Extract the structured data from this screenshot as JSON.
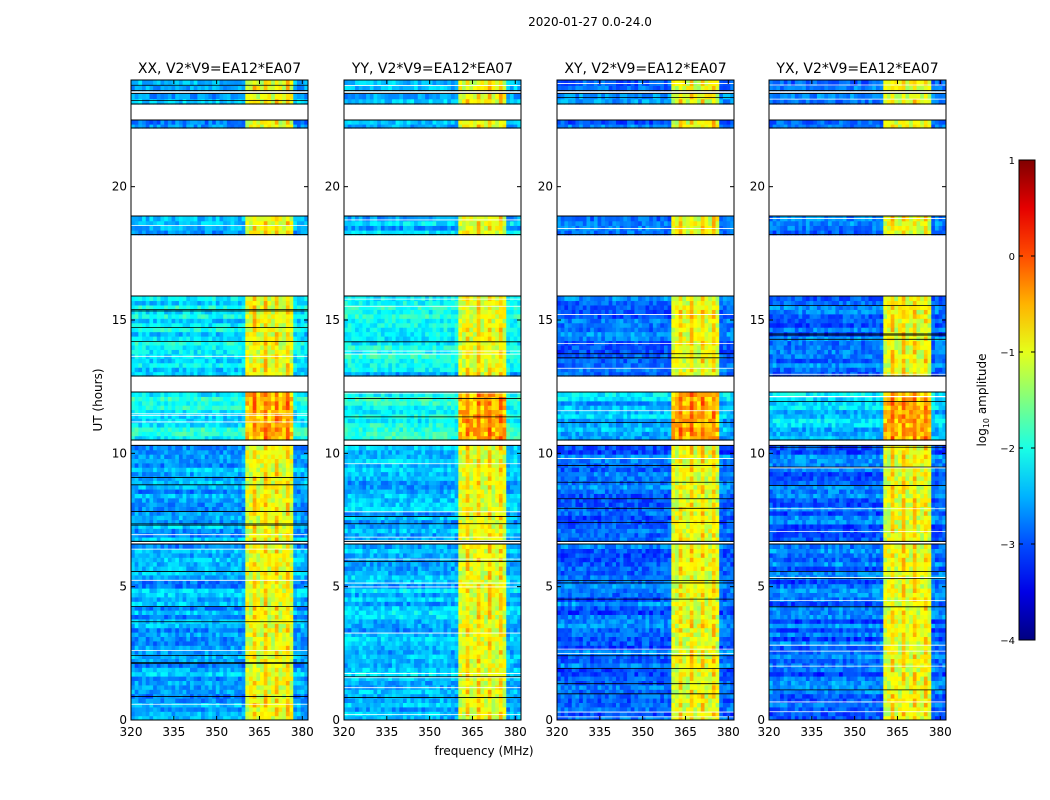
{
  "figure": {
    "suptitle": "2020-01-27 0.0-24.0"
  },
  "chart_data": {
    "type": "heatmap",
    "title": "2020-01-27 0.0-24.0",
    "xlabel": "frequency (MHz)",
    "ylabel": "UT (hours)",
    "xlim": [
      320,
      382
    ],
    "ylim": [
      0,
      24
    ],
    "x_ticks": [
      "320",
      "335",
      "350",
      "365",
      "380"
    ],
    "x_tick_values": [
      320,
      335,
      350,
      365,
      380
    ],
    "y_ticks": [
      "0",
      "5",
      "10",
      "15",
      "20"
    ],
    "y_tick_values": [
      0,
      5,
      10,
      15,
      20
    ],
    "panels": [
      {
        "title": "XX, V2*V9=EA12*EA07",
        "pol": "XX"
      },
      {
        "title": "YY, V2*V9=EA12*EA07",
        "pol": "YY"
      },
      {
        "title": "XY, V2*V9=EA12*EA07",
        "pol": "XY"
      },
      {
        "title": "YX, V2*V9=EA12*EA07",
        "pol": "YX"
      }
    ],
    "bright_band_mhz": [
      360,
      376
    ],
    "data_segments_hours": [
      [
        0.0,
        6.6
      ],
      [
        6.7,
        10.3
      ],
      [
        10.5,
        12.3
      ],
      [
        12.9,
        15.9
      ],
      [
        18.2,
        18.9
      ],
      [
        22.2,
        22.5
      ],
      [
        23.1,
        23.5
      ],
      [
        23.6,
        24.0
      ]
    ],
    "colorbar": {
      "label": "log10 amplitude",
      "label_base": "log",
      "label_sub": "10",
      "label_rest": " amplitude",
      "range": [
        -4,
        1
      ],
      "ticks": [
        "1",
        "0",
        "−1",
        "−2",
        "−3",
        "−4"
      ],
      "tick_values": [
        1,
        0,
        -1,
        -2,
        -3,
        -4
      ],
      "colormap": "jet"
    }
  }
}
